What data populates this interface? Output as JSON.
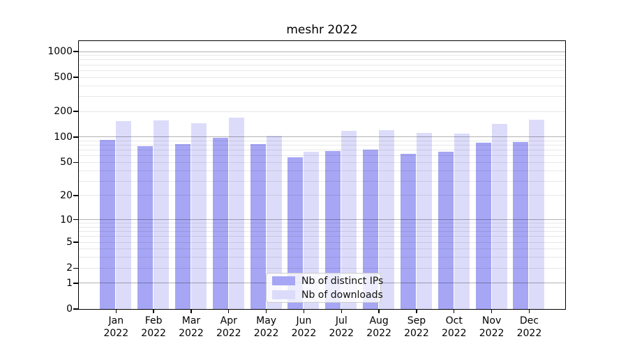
{
  "chart_data": {
    "type": "bar",
    "title": "meshr 2022",
    "categories": [
      "Jan",
      "Feb",
      "Mar",
      "Apr",
      "May",
      "Jun",
      "Jul",
      "Aug",
      "Sep",
      "Oct",
      "Nov",
      "Dec"
    ],
    "year": "2022",
    "series": [
      {
        "name": "Nb of distinct IPs",
        "color": "#a6a6f5",
        "values": [
          93,
          78,
          82,
          97,
          82,
          58,
          68,
          71,
          63,
          67,
          85,
          88
        ]
      },
      {
        "name": "Nb of downloads",
        "color": "#dcdcfa",
        "values": [
          153,
          156,
          145,
          170,
          103,
          67,
          119,
          121,
          111,
          109,
          142,
          160
        ]
      }
    ],
    "yscale": "log10(1+v)",
    "y_ticks": [
      1000,
      500,
      200,
      100,
      50,
      20,
      10,
      5,
      2,
      1,
      0
    ],
    "ylim": [
      0,
      1320
    ],
    "grid": true,
    "legend_position": "lower center"
  }
}
